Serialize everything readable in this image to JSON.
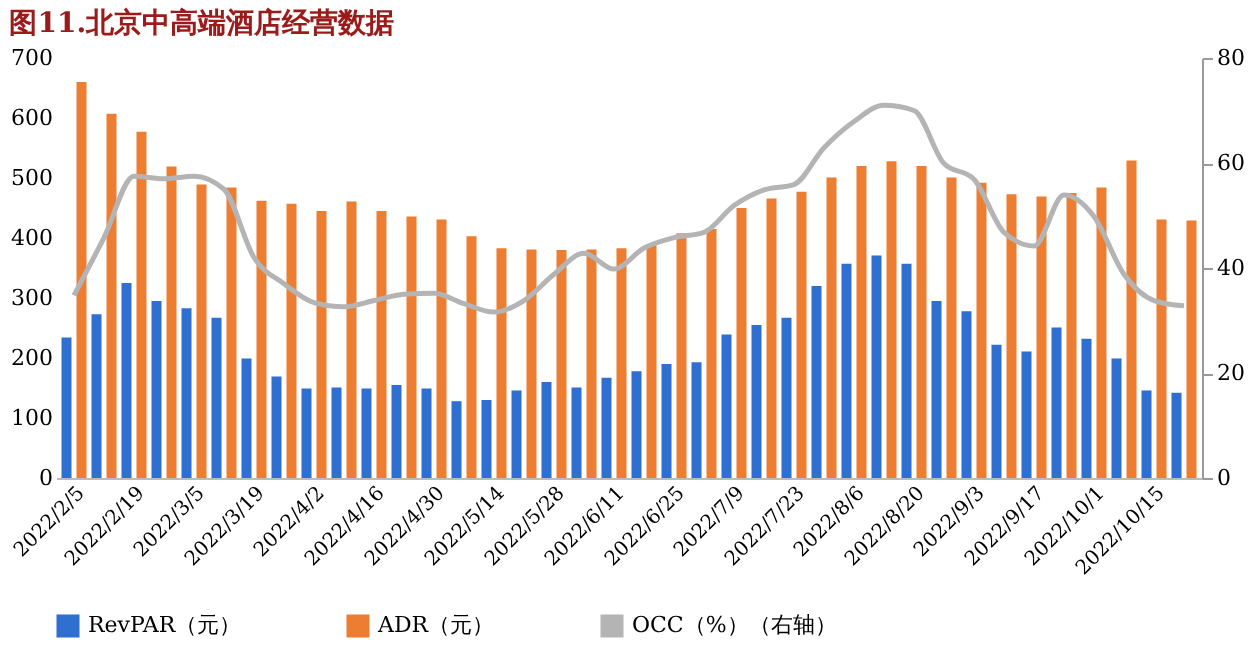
{
  "chart_data": {
    "type": "bar",
    "title": "图11.北京中高端酒店经营数据",
    "categories": [
      "2022/2/5",
      null,
      "2022/2/19",
      null,
      "2022/3/5",
      null,
      "2022/3/19",
      null,
      "2022/4/2",
      null,
      "2022/4/16",
      null,
      "2022/4/30",
      null,
      "2022/5/14",
      null,
      "2022/5/28",
      null,
      "2022/6/11",
      null,
      "2022/6/25",
      null,
      "2022/7/9",
      null,
      "2022/7/23",
      null,
      "2022/8/6",
      null,
      "2022/8/20",
      null,
      "2022/9/3",
      null,
      "2022/9/17",
      null,
      "2022/10/1",
      null,
      "2022/10/15",
      null
    ],
    "series": [
      {
        "name": "RevPAR（元）",
        "color": "#2e6fcf",
        "values": [
          234,
          273,
          325,
          295,
          283,
          267,
          199,
          169,
          149,
          151,
          149,
          155,
          149,
          128,
          130,
          146,
          160,
          151,
          167,
          178,
          190,
          193,
          239,
          255,
          267,
          320,
          357,
          371,
          357,
          295,
          278,
          222,
          211,
          251,
          232,
          199,
          146,
          142
        ]
      },
      {
        "name": "ADR（元）",
        "color": "#ed7d31",
        "values": [
          660,
          607,
          577,
          519,
          489,
          484,
          462,
          457,
          445,
          461,
          445,
          436,
          431,
          403,
          383,
          381,
          380,
          381,
          383,
          390,
          408,
          415,
          450,
          466,
          477,
          501,
          520,
          528,
          520,
          501,
          492,
          473,
          469,
          475,
          484,
          529,
          431,
          429
        ]
      },
      {
        "name": "OCC（%）（右轴）",
        "type": "line",
        "axis": "y2",
        "color": "#b4b4b4",
        "values": [
          34.8,
          45.8,
          57.5,
          57,
          57.5,
          55,
          42,
          37,
          33.4,
          32.6,
          33.8,
          35,
          35.2,
          33.2,
          31.6,
          33.8,
          38.8,
          42.8,
          39.8,
          43.8,
          45.8,
          46.8,
          51.9,
          54.9,
          55.9,
          62.9,
          67.9,
          71,
          70,
          59.9,
          56.9,
          46.8,
          44.2,
          53.9,
          49.8,
          38.8,
          33.8,
          32.8
        ]
      }
    ],
    "ylim": [
      0,
      700
    ],
    "yticks": [
      0,
      100,
      200,
      300,
      400,
      500,
      600,
      700
    ],
    "y2lim": [
      0,
      80
    ],
    "y2ticks": [
      0,
      20,
      40,
      60,
      80
    ],
    "grid": false,
    "legend": "bottom"
  }
}
